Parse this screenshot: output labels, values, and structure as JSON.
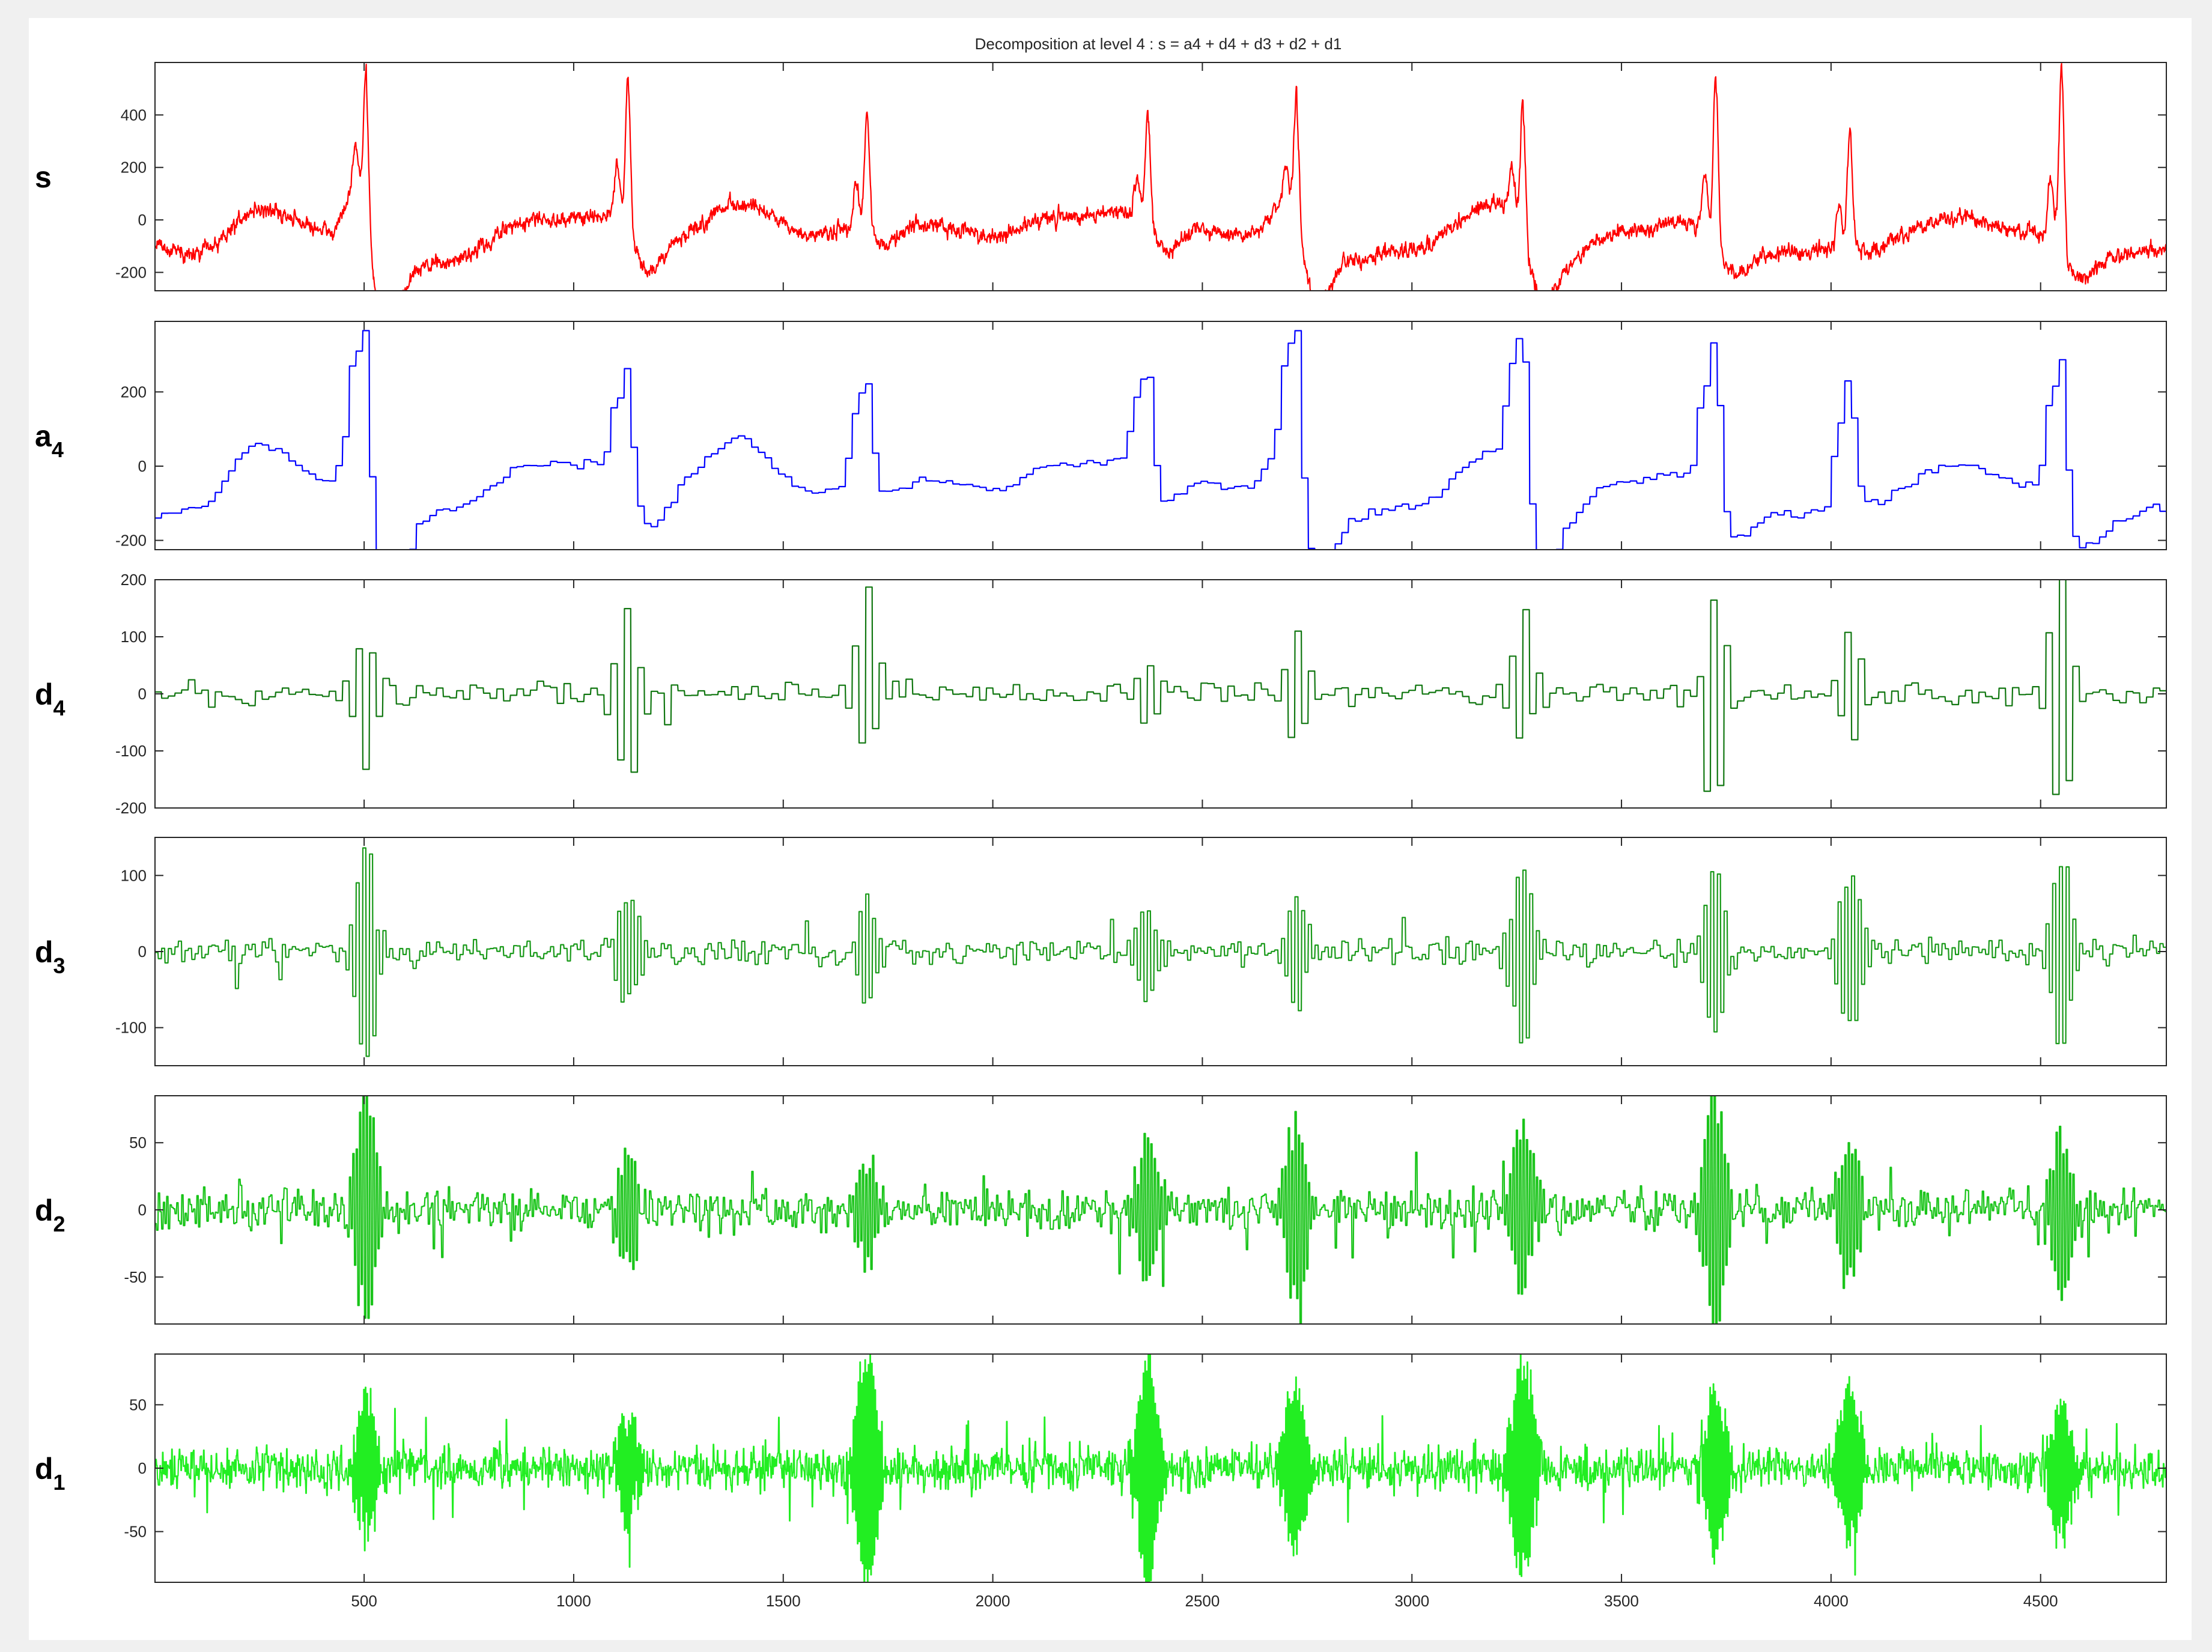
{
  "chart_data": {
    "type": "line",
    "title": "Decomposition at level 4 : s = a4 + d4 + d3 + d2 + d1",
    "xlim": [
      1,
      4800
    ],
    "x_ticks": [
      500,
      1000,
      1500,
      2000,
      2500,
      3000,
      3500,
      4000,
      4500
    ],
    "x_tick_labels": [
      "500",
      "1000",
      "1500",
      "2000",
      "2500",
      "3000",
      "3500",
      "4000",
      "4500"
    ],
    "grid": false,
    "beats": [
      505,
      1130,
      1700,
      2370,
      2725,
      3265,
      3725,
      4045,
      4550
    ],
    "panels": [
      {
        "id": "s",
        "label": "s",
        "sub": "",
        "color": "#ff0000",
        "ylim": [
          -270,
          600
        ],
        "y_ticks": [
          -200,
          0,
          200,
          400
        ],
        "y_tick_labels": [
          "-200",
          "0",
          "200",
          "400"
        ],
        "peaks": [
          580,
          540,
          410,
          410,
          490,
          470,
          560,
          340,
          590
        ],
        "troughs": [
          -240,
          -140,
          -100,
          -100,
          -190,
          -200,
          -170,
          -130,
          -200
        ],
        "baseline_knots": [
          [
            1,
            -100
          ],
          [
            100,
            -130
          ],
          [
            250,
            40
          ],
          [
            420,
            -40
          ],
          [
            480,
            100
          ],
          [
            560,
            -220
          ],
          [
            700,
            -160
          ],
          [
            900,
            0
          ],
          [
            1080,
            20
          ],
          [
            1200,
            -100
          ],
          [
            1400,
            60
          ],
          [
            1560,
            -60
          ],
          [
            1700,
            -30
          ],
          [
            1850,
            -20
          ],
          [
            2000,
            -60
          ],
          [
            2150,
            10
          ],
          [
            2300,
            30
          ],
          [
            2450,
            -30
          ],
          [
            2600,
            -60
          ],
          [
            2700,
            50
          ],
          [
            2800,
            -170
          ],
          [
            3000,
            -110
          ],
          [
            3200,
            60
          ],
          [
            3330,
            -200
          ],
          [
            3500,
            -40
          ],
          [
            3650,
            -10
          ],
          [
            3780,
            -150
          ],
          [
            3950,
            -110
          ],
          [
            4100,
            -90
          ],
          [
            4300,
            10
          ],
          [
            4450,
            -40
          ],
          [
            4620,
            -140
          ],
          [
            4800,
            -120
          ]
        ],
        "noise": 28,
        "style": "raw"
      },
      {
        "id": "a4",
        "label": "a",
        "sub": "4",
        "color": "#0000ff",
        "ylim": [
          -225,
          390
        ],
        "y_ticks": [
          -200,
          0,
          200
        ],
        "y_tick_labels": [
          "-200",
          "0",
          "200"
        ],
        "peaks": [
          360,
          255,
          245,
          275,
          390,
          360,
          340,
          245,
          295
        ],
        "troughs": [
          -210,
          -120,
          -70,
          -80,
          -170,
          -170,
          -160,
          -110,
          -180
        ],
        "baseline_knots": [
          [
            1,
            -130
          ],
          [
            100,
            -120
          ],
          [
            250,
            60
          ],
          [
            420,
            -40
          ],
          [
            480,
            80
          ],
          [
            560,
            -200
          ],
          [
            700,
            -120
          ],
          [
            900,
            0
          ],
          [
            1080,
            10
          ],
          [
            1200,
            -80
          ],
          [
            1400,
            70
          ],
          [
            1560,
            -70
          ],
          [
            1700,
            -50
          ],
          [
            1850,
            -40
          ],
          [
            2000,
            -60
          ],
          [
            2150,
            0
          ],
          [
            2300,
            20
          ],
          [
            2450,
            -30
          ],
          [
            2600,
            -60
          ],
          [
            2700,
            40
          ],
          [
            2800,
            -150
          ],
          [
            3000,
            -110
          ],
          [
            3200,
            40
          ],
          [
            3330,
            -170
          ],
          [
            3500,
            -40
          ],
          [
            3650,
            -20
          ],
          [
            3780,
            -130
          ],
          [
            3950,
            -130
          ],
          [
            4100,
            -90
          ],
          [
            4300,
            10
          ],
          [
            4450,
            -40
          ],
          [
            4620,
            -170
          ],
          [
            4800,
            -110
          ]
        ],
        "step": 16,
        "style": "step"
      },
      {
        "id": "d4",
        "label": "d",
        "sub": "4",
        "color": "#117711",
        "ylim": [
          -200,
          200
        ],
        "y_ticks": [
          -200,
          -100,
          0,
          100,
          200
        ],
        "y_tick_labels": [
          "-200",
          "-100",
          "0",
          "100",
          "200"
        ],
        "peaks": [
          120,
          160,
          180,
          60,
          120,
          140,
          180,
          130,
          200
        ],
        "troughs": [
          -120,
          -165,
          -85,
          -50,
          -90,
          -95,
          -180,
          -90,
          -200
        ],
        "noise": 18,
        "step": 16,
        "style": "stepnoise"
      },
      {
        "id": "d3",
        "label": "d",
        "sub": "3",
        "color": "#1a9a1a",
        "ylim": [
          -150,
          150
        ],
        "y_ticks": [
          -100,
          0,
          100
        ],
        "y_tick_labels": [
          "-100",
          "0",
          "100"
        ],
        "peaks": [
          150,
          80,
          65,
          50,
          70,
          115,
          100,
          100,
          125
        ],
        "troughs": [
          -145,
          -60,
          -60,
          -65,
          -70,
          -115,
          -110,
          -100,
          -125
        ],
        "noise": 14,
        "step": 8,
        "style": "stepnoise"
      },
      {
        "id": "d2",
        "label": "d",
        "sub": "2",
        "color": "#19c419",
        "ylim": [
          -85,
          85
        ],
        "y_ticks": [
          -50,
          0,
          50
        ],
        "y_tick_labels": [
          "-50",
          "0",
          "50"
        ],
        "peaks": [
          80,
          45,
          40,
          55,
          65,
          60,
          85,
          50,
          55
        ],
        "troughs": [
          -80,
          -45,
          -40,
          -55,
          -65,
          -55,
          -85,
          -50,
          -65
        ],
        "noise": 13,
        "step": 4,
        "style": "stepnoise"
      },
      {
        "id": "d1",
        "label": "d",
        "sub": "1",
        "color": "#22ee22",
        "ylim": [
          -90,
          90
        ],
        "y_ticks": [
          -50,
          0,
          50
        ],
        "y_tick_labels": [
          "-50",
          "0",
          "50"
        ],
        "peaks": [
          55,
          40,
          88,
          80,
          60,
          85,
          60,
          60,
          50
        ],
        "troughs": [
          -55,
          -40,
          -90,
          -80,
          -60,
          -80,
          -60,
          -60,
          -50
        ],
        "noise": 14,
        "step": 2,
        "style": "stepnoise"
      }
    ]
  }
}
